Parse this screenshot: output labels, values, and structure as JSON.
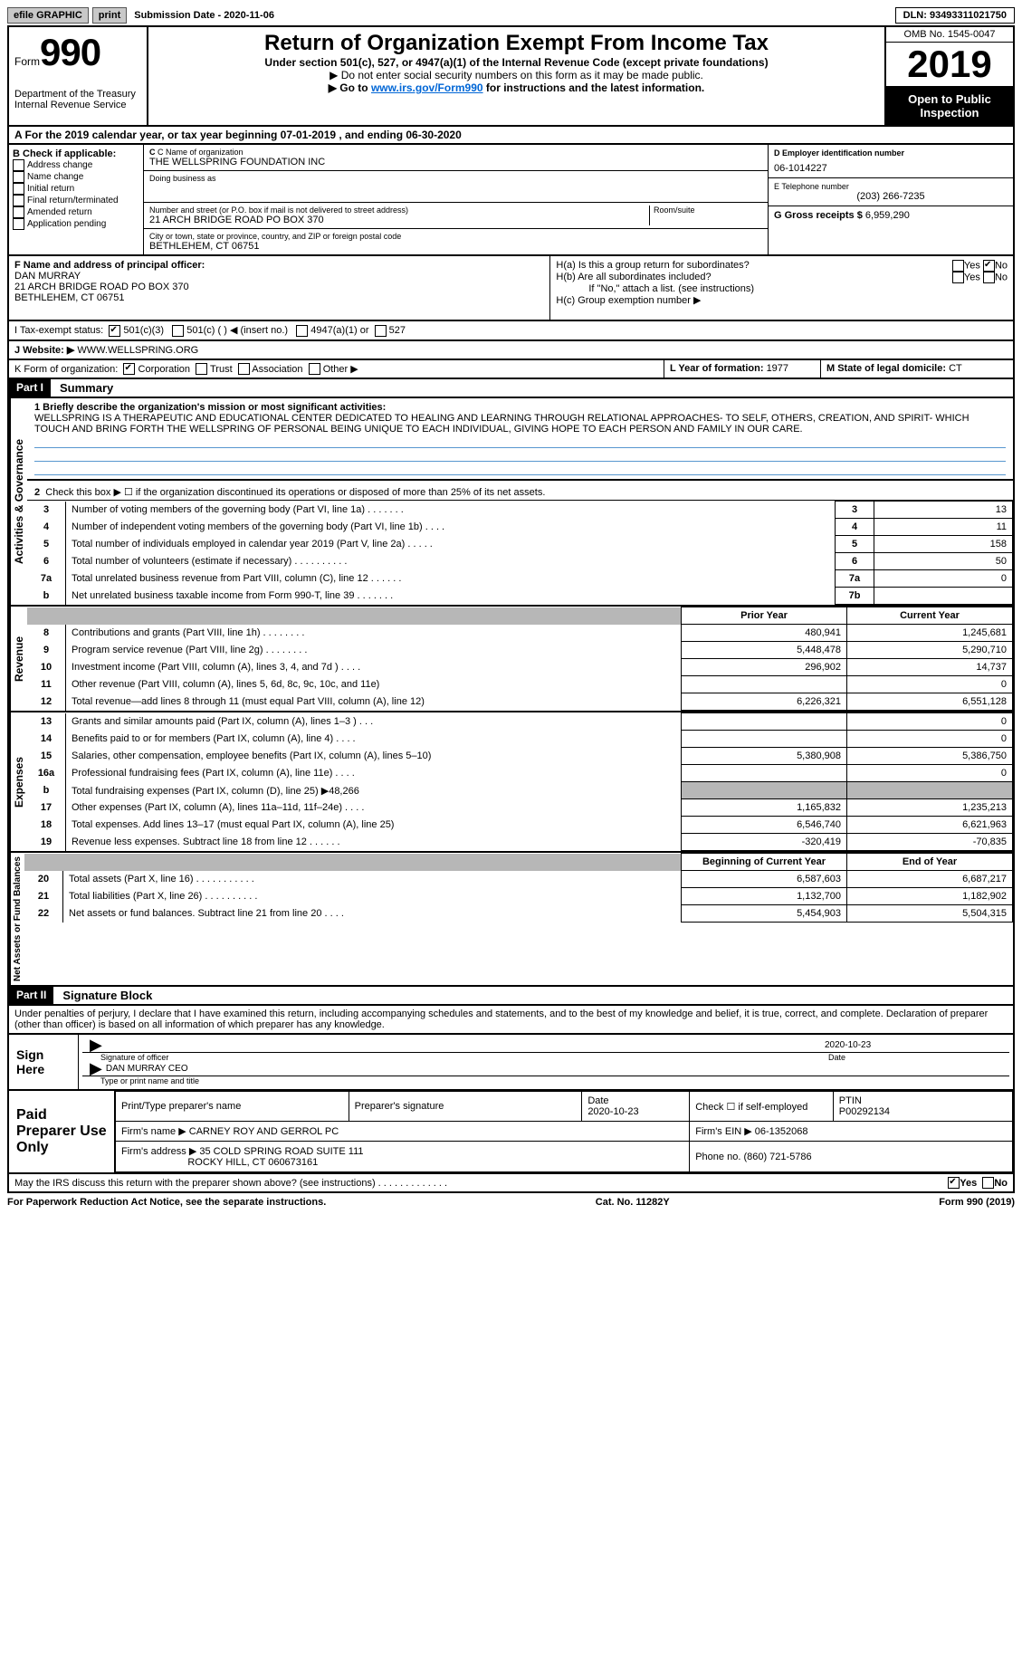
{
  "topbar": {
    "efile": "efile GRAPHIC",
    "print": "print",
    "sub_date_label": "Submission Date - ",
    "sub_date": "2020-11-06",
    "dln_label": "DLN: ",
    "dln": "93493311021750"
  },
  "header": {
    "form_label": "Form",
    "form_number": "990",
    "title": "Return of Organization Exempt From Income Tax",
    "subtitle": "Under section 501(c), 527, or 4947(a)(1) of the Internal Revenue Code (except private foundations)",
    "note1": "▶ Do not enter social security numbers on this form as it may be made public.",
    "note2_prefix": "▶ Go to ",
    "note2_link": "www.irs.gov/Form990",
    "note2_suffix": " for instructions and the latest information.",
    "dept1": "Department of the Treasury",
    "dept2": "Internal Revenue Service",
    "omb": "OMB No. 1545-0047",
    "tax_year": "2019",
    "open_public": "Open to Public Inspection"
  },
  "line_a": "A For the 2019 calendar year, or tax year beginning 07-01-2019   , and ending 06-30-2020",
  "box_b": {
    "title": "B Check if applicable:",
    "items": [
      "Address change",
      "Name change",
      "Initial return",
      "Final return/terminated",
      "Amended return",
      "Application pending"
    ]
  },
  "box_c": {
    "name_label": "C Name of organization",
    "name": "THE WELLSPRING FOUNDATION INC",
    "dba_label": "Doing business as",
    "street_label": "Number and street (or P.O. box if mail is not delivered to street address)",
    "room_label": "Room/suite",
    "street": "21 ARCH BRIDGE ROAD PO BOX 370",
    "city_label": "City or town, state or province, country, and ZIP or foreign postal code",
    "city": "BETHLEHEM, CT  06751"
  },
  "box_d": {
    "label": "D Employer identification number",
    "value": "06-1014227"
  },
  "box_e": {
    "label": "E Telephone number",
    "value": "(203) 266-7235"
  },
  "box_g": {
    "label": "G Gross receipts $",
    "value": "6,959,290"
  },
  "box_f": {
    "label": "F  Name and address of principal officer:",
    "name": "DAN MURRAY",
    "addr1": "21 ARCH BRIDGE ROAD PO BOX 370",
    "addr2": "BETHLEHEM, CT  06751"
  },
  "box_h": {
    "ha": "H(a)  Is this a group return for subordinates?",
    "hb": "H(b)  Are all subordinates included?",
    "hb_note": "If \"No,\" attach a list. (see instructions)",
    "hc": "H(c)  Group exemption number ▶",
    "yes": "Yes",
    "no": "No"
  },
  "box_i": {
    "label": "I    Tax-exempt status:",
    "opt1": "501(c)(3)",
    "opt2": "501(c) (   ) ◀ (insert no.)",
    "opt3": "4947(a)(1) or",
    "opt4": "527"
  },
  "box_j": {
    "label": "J    Website: ▶",
    "value": "WWW.WELLSPRING.ORG"
  },
  "box_k": {
    "label": "K Form of organization:",
    "opts": [
      "Corporation",
      "Trust",
      "Association",
      "Other ▶"
    ]
  },
  "box_l": {
    "label": "L Year of formation: ",
    "value": "1977"
  },
  "box_m": {
    "label": "M State of legal domicile: ",
    "value": "CT"
  },
  "part1": {
    "label": "Part I",
    "title": "Summary"
  },
  "mission": {
    "prompt": "1  Briefly describe the organization's mission or most significant activities:",
    "text": "WELLSPRING IS A THERAPEUTIC AND EDUCATIONAL CENTER DEDICATED TO HEALING AND LEARNING THROUGH RELATIONAL APPROACHES- TO SELF, OTHERS, CREATION, AND SPIRIT- WHICH TOUCH AND BRING FORTH THE WELLSPRING OF PERSONAL BEING UNIQUE TO EACH INDIVIDUAL, GIVING HOPE TO EACH PERSON AND FAMILY IN OUR CARE."
  },
  "gov_lines": {
    "l2": "Check this box ▶ ☐  if the organization discontinued its operations or disposed of more than 25% of its net assets.",
    "rows": [
      {
        "n": "3",
        "d": "Number of voting members of the governing body (Part VI, line 1a)   .    .    .    .    .    .    .",
        "r": "3",
        "v": "13"
      },
      {
        "n": "4",
        "d": "Number of independent voting members of the governing body (Part VI, line 1b)   .    .    .    .",
        "r": "4",
        "v": "11"
      },
      {
        "n": "5",
        "d": "Total number of individuals employed in calendar year 2019 (Part V, line 2a)   .    .    .    .    .",
        "r": "5",
        "v": "158"
      },
      {
        "n": "6",
        "d": "Total number of volunteers (estimate if necessary)    .    .    .    .    .    .    .    .    .    .",
        "r": "6",
        "v": "50"
      },
      {
        "n": "7a",
        "d": "Total unrelated business revenue from Part VIII, column (C), line 12    .    .    .    .    .    .",
        "r": "7a",
        "v": "0"
      },
      {
        "n": "b",
        "d": "Net unrelated business taxable income from Form 990-T, line 39   .    .    .    .    .    .    .",
        "r": "7b",
        "v": ""
      }
    ]
  },
  "rev_hdr": {
    "prior": "Prior Year",
    "curr": "Current Year"
  },
  "revenue": [
    {
      "n": "8",
      "d": "Contributions and grants (Part VIII, line 1h)    .    .    .    .    .    .    .    .",
      "p": "480,941",
      "c": "1,245,681"
    },
    {
      "n": "9",
      "d": "Program service revenue (Part VIII, line 2g)    .    .    .    .    .    .    .    .",
      "p": "5,448,478",
      "c": "5,290,710"
    },
    {
      "n": "10",
      "d": "Investment income (Part VIII, column (A), lines 3, 4, and 7d )    .    .    .    .",
      "p": "296,902",
      "c": "14,737"
    },
    {
      "n": "11",
      "d": "Other revenue (Part VIII, column (A), lines 5, 6d, 8c, 9c, 10c, and 11e)",
      "p": "",
      "c": "0"
    },
    {
      "n": "12",
      "d": "Total revenue—add lines 8 through 11 (must equal Part VIII, column (A), line 12)",
      "p": "6,226,321",
      "c": "6,551,128"
    }
  ],
  "expenses": [
    {
      "n": "13",
      "d": "Grants and similar amounts paid (Part IX, column (A), lines 1–3 )  .    .    .",
      "p": "",
      "c": "0"
    },
    {
      "n": "14",
      "d": "Benefits paid to or for members (Part IX, column (A), line 4)  .    .    .    .",
      "p": "",
      "c": "0"
    },
    {
      "n": "15",
      "d": "Salaries, other compensation, employee benefits (Part IX, column (A), lines 5–10)",
      "p": "5,380,908",
      "c": "5,386,750"
    },
    {
      "n": "16a",
      "d": "Professional fundraising fees (Part IX, column (A), line 11e)   .    .    .    .",
      "p": "",
      "c": "0"
    },
    {
      "n": "b",
      "d": "Total fundraising expenses (Part IX, column (D), line 25) ▶48,266",
      "p": "SHADE",
      "c": "SHADE"
    },
    {
      "n": "17",
      "d": "Other expenses (Part IX, column (A), lines 11a–11d, 11f–24e)   .    .    .    .",
      "p": "1,165,832",
      "c": "1,235,213"
    },
    {
      "n": "18",
      "d": "Total expenses. Add lines 13–17 (must equal Part IX, column (A), line 25)",
      "p": "6,546,740",
      "c": "6,621,963"
    },
    {
      "n": "19",
      "d": "Revenue less expenses. Subtract line 18 from line 12   .    .    .    .    .    .",
      "p": "-320,419",
      "c": "-70,835"
    }
  ],
  "net_hdr": {
    "b": "Beginning of Current Year",
    "e": "End of Year"
  },
  "netassets": [
    {
      "n": "20",
      "d": "Total assets (Part X, line 16)  .    .    .    .    .    .    .    .    .    .    .",
      "p": "6,587,603",
      "c": "6,687,217"
    },
    {
      "n": "21",
      "d": "Total liabilities (Part X, line 26)  .    .    .    .    .    .    .    .    .    .",
      "p": "1,132,700",
      "c": "1,182,902"
    },
    {
      "n": "22",
      "d": "Net assets or fund balances. Subtract line 21 from line 20   .    .    .    .",
      "p": "5,454,903",
      "c": "5,504,315"
    }
  ],
  "part2": {
    "label": "Part II",
    "title": "Signature Block"
  },
  "perjury": "Under penalties of perjury, I declare that I have examined this return, including accompanying schedules and statements, and to the best of my knowledge and belief, it is true, correct, and complete. Declaration of preparer (other than officer) is based on all information of which preparer has any knowledge.",
  "sign": {
    "here": "Sign Here",
    "sig_label": "Signature of officer",
    "date_label": "Date",
    "sig_date": "2020-10-23",
    "name_label": "Type or print name and title",
    "name_val": "DAN MURRAY  CEO"
  },
  "paid": {
    "title": "Paid Preparer Use Only",
    "r1c1": "Print/Type preparer's name",
    "r1c2": "Preparer's signature",
    "r1c3l": "Date",
    "r1c3v": "2020-10-23",
    "r1c4": "Check ☐ if self-employed",
    "r1c5l": "PTIN",
    "r1c5v": "P00292134",
    "r2l": "Firm's name    ▶",
    "r2v": "CARNEY ROY AND GERROL PC",
    "r2bl": "Firm's EIN ▶",
    "r2bv": "06-1352068",
    "r3l": "Firm's address ▶",
    "r3v1": "35 COLD SPRING ROAD SUITE 111",
    "r3v2": "ROCKY HILL, CT  060673161",
    "r3bl": "Phone no.",
    "r3bv": "(860) 721-5786"
  },
  "discuss": "May the IRS discuss this return with the preparer shown above? (see instructions)    .    .    .    .    .    .    .    .    .    .    .    .    .",
  "discuss_yes": "Yes",
  "discuss_no": "No",
  "footer": {
    "l": "For Paperwork Reduction Act Notice, see the separate instructions.",
    "c": "Cat. No. 11282Y",
    "r": "Form 990 (2019)"
  },
  "vtabs": {
    "gov": "Activities & Governance",
    "rev": "Revenue",
    "exp": "Expenses",
    "net": "Net Assets or Fund Balances"
  }
}
